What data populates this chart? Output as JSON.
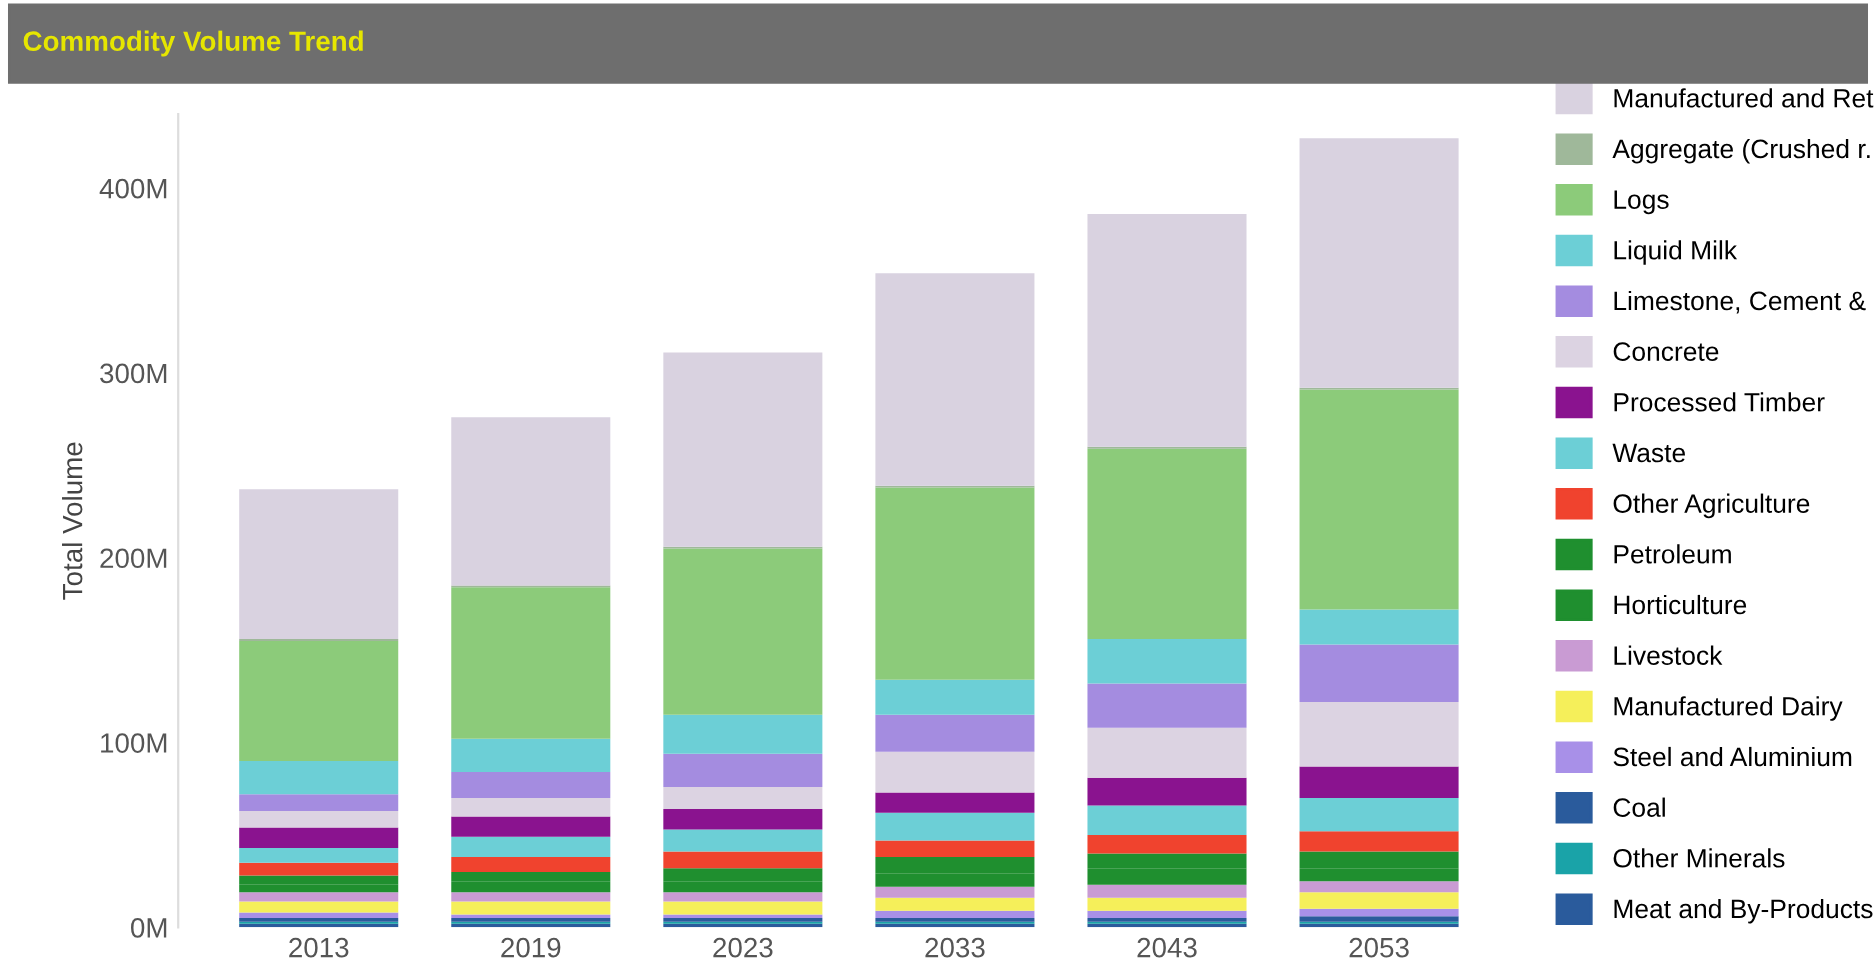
{
  "chart_data": {
    "type": "bar",
    "title": "Commodity Volume Trend",
    "ylabel": "Total Volume",
    "stacked": true,
    "categories": [
      "2013",
      "2019",
      "2023",
      "2033",
      "2043",
      "2053"
    ],
    "series": [
      {
        "name": "Meat and By-Products",
        "color": "#2a5b9c",
        "values": [
          2,
          2,
          2,
          2,
          2,
          2
        ]
      },
      {
        "name": "Other Minerals",
        "color": "#1aa3a8",
        "values": [
          1,
          1,
          1,
          1,
          1,
          1
        ]
      },
      {
        "name": "Coal",
        "color": "#2a5b9c",
        "values": [
          2,
          2,
          2,
          2,
          2,
          3
        ]
      },
      {
        "name": "Steel and Aluminium",
        "color": "#a890e8",
        "values": [
          3,
          2,
          2,
          4,
          4,
          4
        ]
      },
      {
        "name": "Manufactured Dairy",
        "color": "#f5ef5a",
        "values": [
          6,
          7,
          7,
          7,
          7,
          9
        ]
      },
      {
        "name": "Livestock",
        "color": "#c99bd3",
        "values": [
          5,
          5,
          5,
          6,
          7,
          6
        ]
      },
      {
        "name": "Horticulture",
        "color": "#1f8f2f",
        "values": [
          4,
          6,
          6,
          7,
          9,
          7
        ]
      },
      {
        "name": "Petroleum",
        "color": "#1f8f2f",
        "values": [
          5,
          5,
          7,
          9,
          8,
          9
        ]
      },
      {
        "name": "Other Agriculture",
        "color": "#f0432e",
        "values": [
          7,
          8,
          9,
          9,
          10,
          11
        ]
      },
      {
        "name": "Waste",
        "color": "#6ccfd6",
        "values": [
          8,
          11,
          12,
          15,
          16,
          18
        ]
      },
      {
        "name": "Processed Timber",
        "color": "#8a138f",
        "values": [
          11,
          11,
          11,
          11,
          15,
          17
        ]
      },
      {
        "name": "Concrete",
        "color": "#dcd3e2",
        "values": [
          9,
          10,
          12,
          22,
          27,
          35
        ]
      },
      {
        "name": "Limestone, Cement &",
        "color": "#a48ce0",
        "values": [
          9,
          14,
          18,
          20,
          24,
          31
        ]
      },
      {
        "name": "Liquid Milk",
        "color": "#6ccfd6",
        "values": [
          18,
          18,
          21,
          19,
          24,
          19
        ]
      },
      {
        "name": "Logs",
        "color": "#8ccb7a",
        "values": [
          65,
          82,
          90,
          104,
          103,
          119
        ]
      },
      {
        "name": "Aggregate (Crushed r.",
        "color": "#9fb89a",
        "values": [
          1,
          1,
          1,
          1,
          1,
          1
        ]
      },
      {
        "name": "Manufactured and Ret",
        "color": "#d9d2e0",
        "values": [
          81,
          91,
          105,
          115,
          126,
          135
        ]
      }
    ],
    "ylim": [
      0,
      440
    ],
    "yticks": [
      {
        "value": 0,
        "label": "0M"
      },
      {
        "value": 100,
        "label": "100M"
      },
      {
        "value": 200,
        "label": "200M"
      },
      {
        "value": 300,
        "label": "300M"
      },
      {
        "value": 400,
        "label": "400M"
      }
    ],
    "legend": "right"
  }
}
